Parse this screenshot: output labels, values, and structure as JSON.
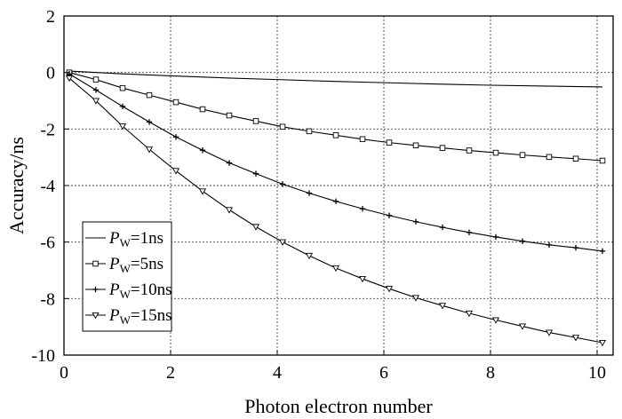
{
  "chart_data": {
    "type": "line",
    "title": "",
    "xlabel": "Photon electron number",
    "ylabel": "Accuracy/ns",
    "xlim": [
      0,
      10.3
    ],
    "ylim": [
      -10,
      2
    ],
    "xticks": [
      0,
      2,
      4,
      6,
      8,
      10
    ],
    "yticks": [
      2,
      0,
      -2,
      -4,
      -6,
      -8,
      -10
    ],
    "grid": true,
    "legend_position": "lower-left",
    "series": [
      {
        "name": "Pw=1ns",
        "legend_main": "P",
        "legend_sub": "W",
        "legend_rest": "=1ns",
        "marker": "none",
        "x": [
          0.1,
          1,
          2,
          3,
          4,
          5,
          6,
          7,
          8,
          9,
          10.1
        ],
        "y": [
          0.05,
          -0.04,
          -0.12,
          -0.19,
          -0.25,
          -0.31,
          -0.36,
          -0.41,
          -0.45,
          -0.48,
          -0.51
        ]
      },
      {
        "name": "Pw=5ns",
        "legend_main": "P",
        "legend_sub": "W",
        "legend_rest": "=5ns",
        "marker": "square",
        "x": [
          0.1,
          0.6,
          1.1,
          1.6,
          2.1,
          2.6,
          3.1,
          3.6,
          4.1,
          4.6,
          5.1,
          5.6,
          6.1,
          6.6,
          7.1,
          7.6,
          8.1,
          8.6,
          9.1,
          9.6,
          10.1
        ],
        "y": [
          0.0,
          -0.25,
          -0.55,
          -0.8,
          -1.05,
          -1.3,
          -1.52,
          -1.72,
          -1.92,
          -2.08,
          -2.22,
          -2.36,
          -2.48,
          -2.58,
          -2.67,
          -2.76,
          -2.84,
          -2.92,
          -2.99,
          -3.05,
          -3.12
        ]
      },
      {
        "name": "Pw=10ns",
        "legend_main": "P",
        "legend_sub": "W",
        "legend_rest": "=10ns",
        "marker": "plus",
        "x": [
          0.1,
          0.6,
          1.1,
          1.6,
          2.1,
          2.6,
          3.1,
          3.6,
          4.1,
          4.6,
          5.1,
          5.6,
          6.1,
          6.6,
          7.1,
          7.6,
          8.1,
          8.6,
          9.1,
          9.6,
          10.1
        ],
        "y": [
          -0.05,
          -0.62,
          -1.2,
          -1.75,
          -2.28,
          -2.75,
          -3.2,
          -3.58,
          -3.95,
          -4.27,
          -4.56,
          -4.82,
          -5.06,
          -5.28,
          -5.48,
          -5.66,
          -5.82,
          -5.97,
          -6.1,
          -6.2,
          -6.32
        ]
      },
      {
        "name": "Pw=15ns",
        "legend_main": "P",
        "legend_sub": "W",
        "legend_rest": "=15ns",
        "marker": "triangle-down",
        "x": [
          0.1,
          0.6,
          1.1,
          1.6,
          2.1,
          2.6,
          3.1,
          3.6,
          4.1,
          4.6,
          5.1,
          5.6,
          6.1,
          6.6,
          7.1,
          7.6,
          8.1,
          8.6,
          9.1,
          9.6,
          10.1
        ],
        "y": [
          -0.2,
          -1.0,
          -1.9,
          -2.72,
          -3.48,
          -4.2,
          -4.86,
          -5.46,
          -6.0,
          -6.48,
          -6.92,
          -7.3,
          -7.65,
          -7.97,
          -8.25,
          -8.52,
          -8.76,
          -8.98,
          -9.2,
          -9.38,
          -9.56
        ]
      }
    ]
  }
}
